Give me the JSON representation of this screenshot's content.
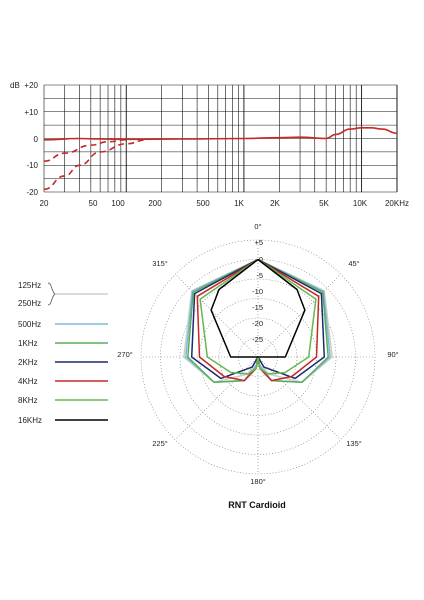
{
  "chart_data": [
    {
      "type": "line",
      "xscale": "log",
      "xlim": [
        20,
        20000
      ],
      "ylim": [
        -20,
        20
      ],
      "ylabel": "dB",
      "ytick_labels": [
        "+20",
        "+10",
        "0",
        "-10",
        "-20"
      ],
      "xtick_labels": [
        "20",
        "50",
        "100",
        "200",
        "500",
        "1K",
        "2K",
        "5K",
        "10K",
        "20KHz"
      ],
      "grid": true,
      "series": [
        {
          "style": "solid",
          "color": "#c62828",
          "x": [
            20,
            40,
            60,
            100,
            300,
            1000,
            2000,
            3000,
            5000,
            6000,
            8000,
            10000,
            12000,
            15000,
            20000
          ],
          "y": [
            -0.5,
            0,
            -0.2,
            -0.3,
            -0.2,
            0,
            0.3,
            0.5,
            0,
            1.5,
            3.5,
            4,
            4,
            3.5,
            2
          ]
        },
        {
          "style": "dashed",
          "color": "#c62828",
          "x": [
            20,
            30,
            50,
            70,
            100
          ],
          "y": [
            -8.5,
            -5.5,
            -2.5,
            -1.2,
            -0.5
          ]
        },
        {
          "style": "dashed",
          "color": "#c62828",
          "x": [
            20,
            30,
            40,
            60,
            100,
            150
          ],
          "y": [
            -19,
            -14,
            -10,
            -5,
            -2,
            -0.5
          ]
        }
      ]
    },
    {
      "type": "polar",
      "title": "RNT  Cardioid",
      "angle_labels": [
        "0°",
        "45°",
        "90°",
        "135°",
        "180°",
        "225°",
        "270°",
        "315°"
      ],
      "radial_labels": [
        "+5",
        "0",
        "-5",
        "-10",
        "-15",
        "-20",
        "-25"
      ],
      "radial_range_db": [
        -25,
        5
      ],
      "series": [
        {
          "name": "125Hz",
          "color": "#cfcfcf",
          "angles": [
            0,
            45,
            90,
            120,
            150,
            170,
            180
          ],
          "db": [
            0,
            -1,
            -6,
            -12,
            -20,
            -25,
            -26
          ]
        },
        {
          "name": "250Hz",
          "color": "#cfcfcf",
          "angles": [
            0,
            45,
            90,
            120,
            150,
            170,
            180
          ],
          "db": [
            0,
            -1,
            -6,
            -12,
            -20,
            -25,
            -26
          ]
        },
        {
          "name": "500Hz",
          "color": "#7bbcd6",
          "angles": [
            0,
            45,
            90,
            120,
            150,
            170,
            180
          ],
          "db": [
            0,
            -1.2,
            -6.5,
            -12,
            -18,
            -23,
            -25
          ]
        },
        {
          "name": "1KHz",
          "color": "#5aad5c",
          "angles": [
            0,
            45,
            90,
            120,
            150,
            170,
            180
          ],
          "db": [
            0,
            -1.5,
            -7,
            -12,
            -18,
            -22,
            -24
          ]
        },
        {
          "name": "2KHz",
          "color": "#1c2a6e",
          "angles": [
            0,
            45,
            90,
            120,
            150,
            170,
            180
          ],
          "db": [
            0,
            -2,
            -8,
            -14,
            -22,
            -25,
            -25
          ]
        },
        {
          "name": "4KHz",
          "color": "#c62828",
          "angles": [
            0,
            45,
            90,
            120,
            150,
            170,
            180
          ],
          "db": [
            0,
            -3,
            -10,
            -15,
            -18,
            -22,
            -25
          ]
        },
        {
          "name": "8KHz",
          "color": "#66b84f",
          "angles": [
            0,
            45,
            90,
            120,
            150,
            170,
            180
          ],
          "db": [
            0,
            -4,
            -12,
            -17,
            -20,
            -22,
            -25
          ]
        },
        {
          "name": "16KHz",
          "color": "#000000",
          "angles": [
            0,
            30,
            45,
            90,
            120,
            150,
            180
          ],
          "db": [
            0,
            -5,
            -8,
            -18,
            -25,
            -25,
            -25
          ]
        }
      ]
    }
  ]
}
